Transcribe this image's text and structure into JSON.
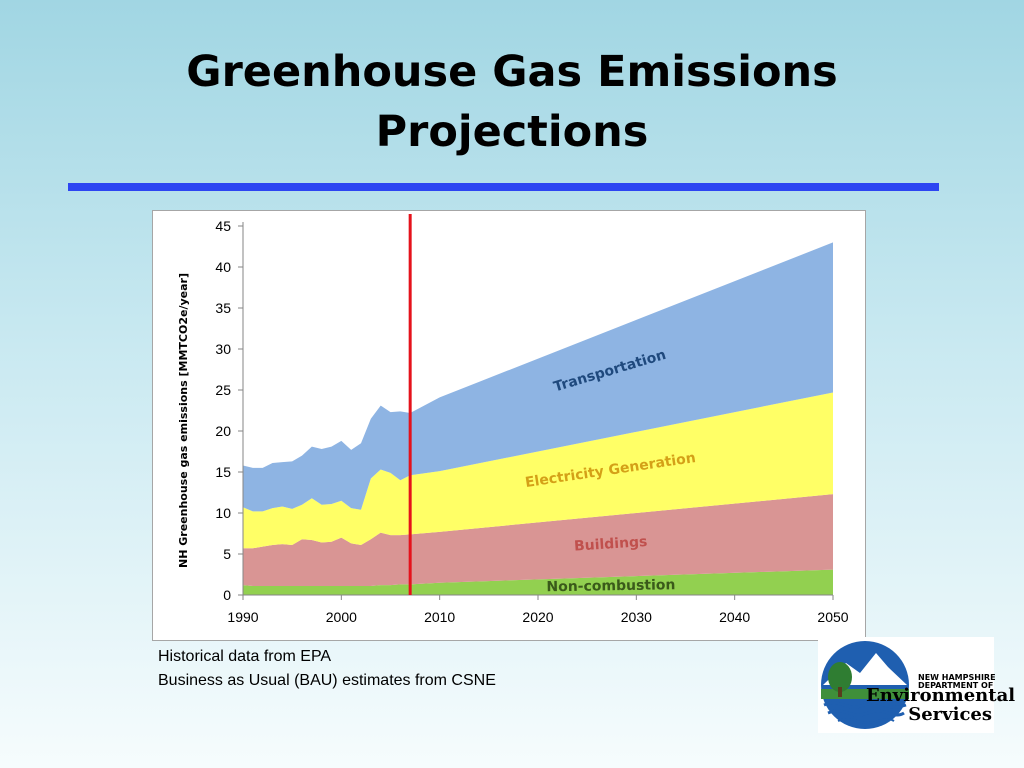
{
  "slide": {
    "title_line1": "Greenhouse Gas Emissions",
    "title_line2": "Projections",
    "accent_color": "#2d45f2",
    "caption_line1": "Historical data from EPA",
    "caption_line2": "Business as Usual (BAU) estimates from CSNE"
  },
  "chart_data": {
    "type": "area",
    "stacked": true,
    "ylabel": "NH Greenhouse gas emissions [MMTCO2e/year]",
    "xlabel": "",
    "xlim": [
      1990,
      2050
    ],
    "ylim": [
      0,
      45
    ],
    "x_ticks": [
      1990,
      2000,
      2010,
      2020,
      2030,
      2040,
      2050
    ],
    "y_ticks": [
      0,
      5,
      10,
      15,
      20,
      25,
      30,
      35,
      40,
      45
    ],
    "grid": false,
    "legend": "none",
    "marker_line": {
      "x": 2007,
      "color": "#e5121b"
    },
    "x": [
      1990,
      1991,
      1992,
      1993,
      1994,
      1995,
      1996,
      1997,
      1998,
      1999,
      2000,
      2001,
      2002,
      2003,
      2004,
      2005,
      2006,
      2007,
      2010,
      2050
    ],
    "series": [
      {
        "name": "Non-combustion",
        "color": "#92d050",
        "label_color": "#3a5a1a",
        "values": [
          1.2,
          1.1,
          1.1,
          1.1,
          1.1,
          1.1,
          1.1,
          1.1,
          1.1,
          1.1,
          1.1,
          1.1,
          1.1,
          1.1,
          1.2,
          1.2,
          1.3,
          1.3,
          1.5,
          3.1
        ]
      },
      {
        "name": "Buildings",
        "color": "#d99594",
        "label_color": "#c0504d",
        "values": [
          4.5,
          4.6,
          4.8,
          5.0,
          5.1,
          5.0,
          5.7,
          5.6,
          5.3,
          5.4,
          5.9,
          5.2,
          5.0,
          5.7,
          6.4,
          6.1,
          6.0,
          6.1,
          6.2,
          9.2
        ]
      },
      {
        "name": "Electricity Generation",
        "color": "#ffff66",
        "label_color": "#d4a017",
        "values": [
          5.0,
          4.5,
          4.3,
          4.5,
          4.6,
          4.4,
          4.2,
          5.1,
          4.6,
          4.6,
          4.5,
          4.3,
          4.3,
          7.4,
          7.7,
          7.6,
          6.7,
          7.2,
          7.4,
          12.4
        ]
      },
      {
        "name": "Transportation",
        "color": "#8eb4e3",
        "label_color": "#1f497d",
        "values": [
          5.1,
          5.3,
          5.3,
          5.5,
          5.4,
          5.8,
          6.0,
          6.3,
          6.8,
          7.0,
          7.3,
          7.1,
          8.1,
          7.3,
          7.8,
          7.4,
          8.4,
          7.6,
          9.0,
          18.3
        ]
      }
    ]
  },
  "logo": {
    "line1": "NEW HAMPSHIRE",
    "line2": "DEPARTMENT OF",
    "line3": "Environmental",
    "line4": "Services"
  }
}
